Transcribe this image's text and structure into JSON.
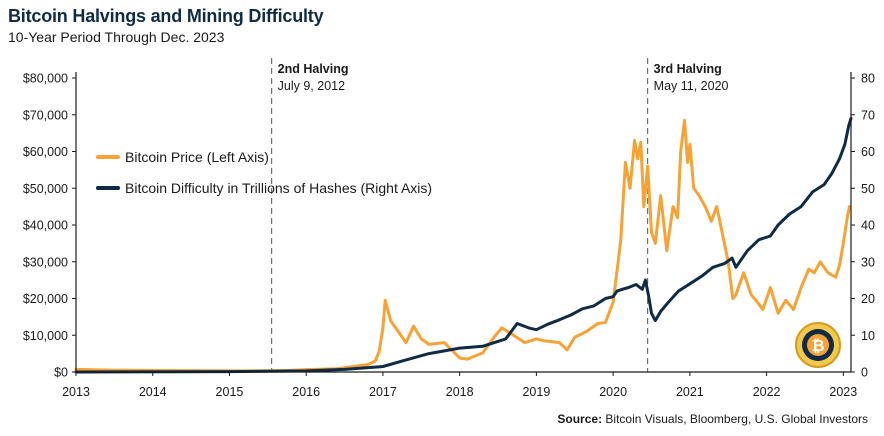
{
  "header": {
    "title": "Bitcoin Halvings and Mining Difficulty",
    "subtitle": "10-Year Period Through Dec. 2023"
  },
  "footer": {
    "source_label": "Source:",
    "source_text": "Bitcoin Visuals, Bloomberg, U.S. Global Investors"
  },
  "logo": {
    "icon": "bitcoin-coin-icon",
    "glyph": "₿"
  },
  "chart_data": {
    "type": "line",
    "title": "Bitcoin Halvings and Mining Difficulty",
    "subtitle": "10-Year Period Through Dec. 2023",
    "x_ticks": [
      "2013",
      "2014",
      "2015",
      "2016",
      "2017",
      "2018",
      "2019",
      "2020",
      "2021",
      "2022",
      "2023"
    ],
    "xlim": [
      2013,
      2023.1
    ],
    "y_left": {
      "ticks": [
        "$0",
        "$10,000",
        "$20,000",
        "$30,000",
        "$40,000",
        "$50,000",
        "$60,000",
        "$70,000",
        "$80,000"
      ],
      "ylim": [
        0,
        80000
      ]
    },
    "y_right": {
      "ticks": [
        "0",
        "10",
        "20",
        "30",
        "40",
        "50",
        "60",
        "70",
        "80"
      ],
      "ylim": [
        0,
        80
      ]
    },
    "grid": false,
    "legend_placement": "top-left",
    "annotations": [
      {
        "x": 2015.55,
        "line1": "2nd Halving",
        "line2": "July 9, 2012"
      },
      {
        "x": 2020.45,
        "line1": "3rd Halving",
        "line2": "May 11, 2020"
      }
    ],
    "series": [
      {
        "name": "Bitcoin Price (Left Axis)",
        "axis": "left",
        "color": "#f7a234",
        "points": [
          [
            2013.0,
            700
          ],
          [
            2013.5,
            500
          ],
          [
            2014.0,
            400
          ],
          [
            2014.5,
            380
          ],
          [
            2015.0,
            300
          ],
          [
            2015.5,
            330
          ],
          [
            2015.8,
            430
          ],
          [
            2016.0,
            650
          ],
          [
            2016.4,
            900
          ],
          [
            2016.8,
            2000
          ],
          [
            2016.9,
            3000
          ],
          [
            2016.95,
            5500
          ],
          [
            2017.0,
            12000
          ],
          [
            2017.03,
            19500
          ],
          [
            2017.1,
            14000
          ],
          [
            2017.2,
            11000
          ],
          [
            2017.3,
            8000
          ],
          [
            2017.4,
            12500
          ],
          [
            2017.5,
            9000
          ],
          [
            2017.6,
            7500
          ],
          [
            2017.8,
            8000
          ],
          [
            2018.0,
            3800
          ],
          [
            2018.1,
            3500
          ],
          [
            2018.3,
            5200
          ],
          [
            2018.45,
            9500
          ],
          [
            2018.55,
            12000
          ],
          [
            2018.7,
            10000
          ],
          [
            2018.85,
            8000
          ],
          [
            2019.0,
            9000
          ],
          [
            2019.1,
            8500
          ],
          [
            2019.3,
            8000
          ],
          [
            2019.4,
            6000
          ],
          [
            2019.5,
            9500
          ],
          [
            2019.65,
            11000
          ],
          [
            2019.8,
            13200
          ],
          [
            2019.9,
            13500
          ],
          [
            2020.0,
            19000
          ],
          [
            2020.06,
            29000
          ],
          [
            2020.1,
            36000
          ],
          [
            2020.16,
            57000
          ],
          [
            2020.22,
            50000
          ],
          [
            2020.28,
            63000
          ],
          [
            2020.32,
            58000
          ],
          [
            2020.36,
            62500
          ],
          [
            2020.4,
            45000
          ],
          [
            2020.45,
            56000
          ],
          [
            2020.5,
            38000
          ],
          [
            2020.55,
            35000
          ],
          [
            2020.62,
            48000
          ],
          [
            2020.7,
            33000
          ],
          [
            2020.78,
            45000
          ],
          [
            2020.84,
            42000
          ],
          [
            2020.88,
            60000
          ],
          [
            2020.93,
            68500
          ],
          [
            2020.97,
            57000
          ],
          [
            2021.0,
            62000
          ],
          [
            2021.05,
            50000
          ],
          [
            2021.12,
            48000
          ],
          [
            2021.2,
            45000
          ],
          [
            2021.28,
            41000
          ],
          [
            2021.35,
            45000
          ],
          [
            2021.42,
            38000
          ],
          [
            2021.5,
            30000
          ],
          [
            2021.56,
            20000
          ],
          [
            2021.6,
            21000
          ],
          [
            2021.7,
            27000
          ],
          [
            2021.8,
            21000
          ],
          [
            2021.88,
            19000
          ],
          [
            2021.95,
            17000
          ],
          [
            2022.05,
            23000
          ],
          [
            2022.15,
            16000
          ],
          [
            2022.25,
            19500
          ],
          [
            2022.35,
            17000
          ],
          [
            2022.45,
            23000
          ],
          [
            2022.55,
            28000
          ],
          [
            2022.62,
            27000
          ],
          [
            2022.7,
            30000
          ],
          [
            2022.8,
            27000
          ],
          [
            2022.9,
            25800
          ],
          [
            2022.95,
            29000
          ],
          [
            2023.0,
            35000
          ],
          [
            2023.05,
            42000
          ],
          [
            2023.08,
            45000
          ]
        ]
      },
      {
        "name": "Bitcoin Difficulty in Trillions of Hashes (Right Axis)",
        "axis": "right",
        "color": "#0f2b46",
        "points": [
          [
            2013.0,
            0.0
          ],
          [
            2015.0,
            0.1
          ],
          [
            2016.0,
            0.3
          ],
          [
            2016.5,
            0.7
          ],
          [
            2017.0,
            1.5
          ],
          [
            2017.3,
            3.3
          ],
          [
            2017.6,
            5.0
          ],
          [
            2018.0,
            6.5
          ],
          [
            2018.3,
            7.0
          ],
          [
            2018.6,
            9.0
          ],
          [
            2018.75,
            13.2
          ],
          [
            2018.9,
            12.0
          ],
          [
            2019.0,
            11.5
          ],
          [
            2019.15,
            13.0
          ],
          [
            2019.3,
            14.2
          ],
          [
            2019.45,
            15.5
          ],
          [
            2019.6,
            17.2
          ],
          [
            2019.75,
            18.0
          ],
          [
            2019.9,
            20.0
          ],
          [
            2020.0,
            20.5
          ],
          [
            2020.05,
            22.0
          ],
          [
            2020.12,
            22.5
          ],
          [
            2020.2,
            23.0
          ],
          [
            2020.3,
            23.8
          ],
          [
            2020.38,
            22.5
          ],
          [
            2020.42,
            25.0
          ],
          [
            2020.46,
            21.0
          ],
          [
            2020.5,
            16.0
          ],
          [
            2020.55,
            14.0
          ],
          [
            2020.62,
            16.5
          ],
          [
            2020.72,
            19.0
          ],
          [
            2020.85,
            22.0
          ],
          [
            2021.0,
            24.0
          ],
          [
            2021.15,
            26.0
          ],
          [
            2021.3,
            28.5
          ],
          [
            2021.45,
            29.5
          ],
          [
            2021.55,
            31.0
          ],
          [
            2021.6,
            28.5
          ],
          [
            2021.75,
            33.0
          ],
          [
            2021.9,
            36.0
          ],
          [
            2022.05,
            37.0
          ],
          [
            2022.15,
            40.0
          ],
          [
            2022.3,
            43.0
          ],
          [
            2022.45,
            45.0
          ],
          [
            2022.6,
            49.0
          ],
          [
            2022.75,
            51.0
          ],
          [
            2022.85,
            54.0
          ],
          [
            2022.95,
            58.0
          ],
          [
            2023.02,
            62.0
          ],
          [
            2023.07,
            67.0
          ],
          [
            2023.1,
            69.0
          ]
        ]
      }
    ]
  }
}
